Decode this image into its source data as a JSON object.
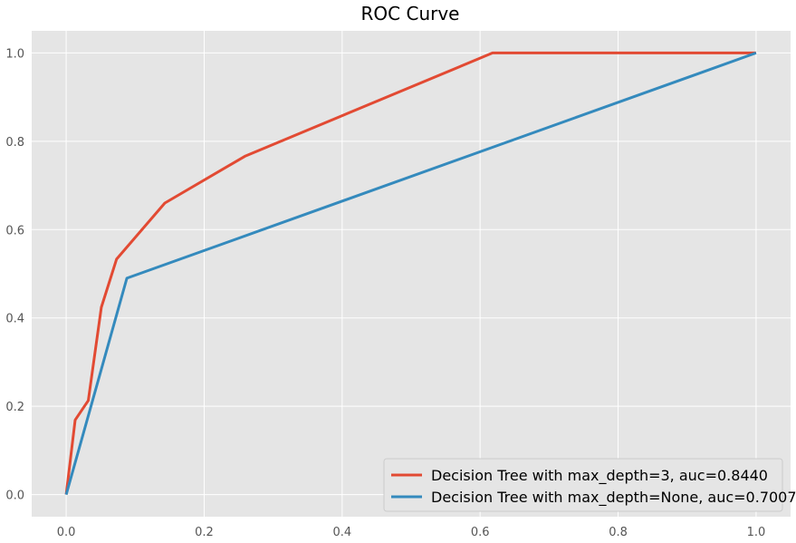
{
  "chart_data": {
    "type": "line",
    "title": "ROC Curve",
    "xlabel": "",
    "ylabel": "",
    "xlim": [
      -0.05,
      1.05
    ],
    "ylim": [
      -0.05,
      1.05
    ],
    "xticks": [
      0.0,
      0.2,
      0.4,
      0.6,
      0.8,
      1.0
    ],
    "xtick_labels": [
      "0.0",
      "0.2",
      "0.4",
      "0.6",
      "0.8",
      "1.0"
    ],
    "yticks": [
      0.0,
      0.2,
      0.4,
      0.6,
      0.8,
      1.0
    ],
    "ytick_labels": [
      "0.0",
      "0.2",
      "0.4",
      "0.6",
      "0.8",
      "1.0"
    ],
    "grid": true,
    "legend_position": "bottom-right",
    "series": [
      {
        "name": "Decision Tree with max_depth=3, auc=0.8440",
        "color": "#e24a33",
        "x": [
          0.0,
          0.013,
          0.032,
          0.051,
          0.073,
          0.143,
          0.259,
          0.618,
          1.0
        ],
        "y": [
          0.0,
          0.169,
          0.213,
          0.424,
          0.533,
          0.66,
          0.766,
          1.0,
          1.0
        ]
      },
      {
        "name": "Decision Tree with max_depth=None, auc=0.7007",
        "color": "#348abd",
        "x": [
          0.0,
          0.088,
          1.0
        ],
        "y": [
          0.0,
          0.49,
          1.0
        ]
      }
    ]
  }
}
